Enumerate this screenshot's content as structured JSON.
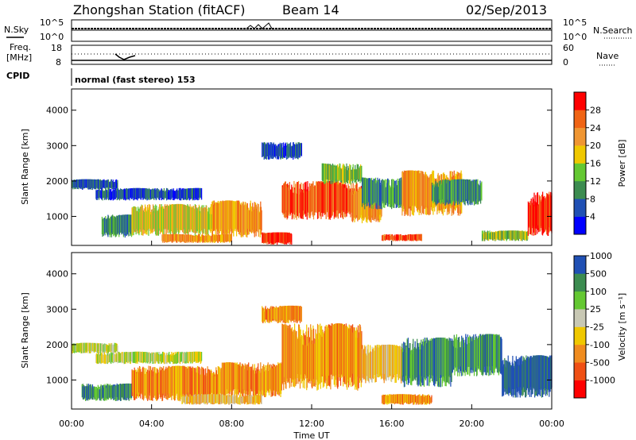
{
  "header": {
    "title": "Zhongshan Station (fitACF)",
    "beam": "Beam 14",
    "date": "02/Sep/2013"
  },
  "summary_panels": {
    "nsky_label": "N.Sky",
    "nsearch_label": "N.Search",
    "count_ticks": [
      "10^5",
      "10^0"
    ],
    "freq_label_1": "Freq.",
    "freq_label_2": "[MHz]",
    "freq_ticks": [
      "18",
      "8"
    ],
    "nave_ticks": [
      "60",
      "0"
    ],
    "nave_label": "Nave",
    "cpid_label": "CPID",
    "cpid_text": "normal (fast stereo) 153"
  },
  "colors": {
    "power_scale": [
      "#0000ff",
      "#2050b4",
      "#3c8c50",
      "#64c832",
      "#f0c800",
      "#f09632",
      "#f06414",
      "#ff0000"
    ],
    "velocity_scale": [
      "#ff0000",
      "#f05014",
      "#f08c1e",
      "#f0c800",
      "#c8c8b4",
      "#64c832",
      "#3c8c50",
      "#2050b4"
    ]
  },
  "chart_data": [
    {
      "type": "heatmap",
      "name": "power",
      "ylabel": "Slant Range [km]",
      "yticks": [
        "1000",
        "2000",
        "3000",
        "4000"
      ],
      "ylim": [
        180,
        4600
      ],
      "xlim": [
        0,
        24
      ],
      "colorbar_label": "Power [dB]",
      "colorbar_ticks": [
        "4",
        "8",
        "12",
        "16",
        "20",
        "24",
        "28"
      ],
      "colorbar_range": [
        0,
        32
      ],
      "blobs": [
        {
          "t0": 0.0,
          "t1": 2.3,
          "r0": 1750,
          "r1": 2050,
          "c": 1
        },
        {
          "t0": 1.2,
          "t1": 6.5,
          "r0": 1450,
          "r1": 1800,
          "c": 1
        },
        {
          "t0": 1.5,
          "t1": 3.0,
          "r0": 400,
          "r1": 1050,
          "c": 2
        },
        {
          "t0": 3.0,
          "t1": 7.0,
          "r0": 450,
          "r1": 1350,
          "c": 4
        },
        {
          "t0": 7.0,
          "t1": 9.5,
          "r0": 400,
          "r1": 1450,
          "c": 5
        },
        {
          "t0": 9.5,
          "t1": 11.0,
          "r0": 200,
          "r1": 550,
          "c": 7
        },
        {
          "t0": 10.5,
          "t1": 14.5,
          "r0": 900,
          "r1": 2000,
          "c": 6
        },
        {
          "t0": 12.5,
          "t1": 14.5,
          "r0": 1900,
          "r1": 2500,
          "c": 3
        },
        {
          "t0": 14.0,
          "t1": 15.5,
          "r0": 800,
          "r1": 1800,
          "c": 5
        },
        {
          "t0": 14.5,
          "t1": 17.0,
          "r0": 1200,
          "r1": 2100,
          "c": 2
        },
        {
          "t0": 16.5,
          "t1": 19.5,
          "r0": 1000,
          "r1": 2300,
          "c": 5
        },
        {
          "t0": 18.0,
          "t1": 20.5,
          "r0": 1300,
          "r1": 2050,
          "c": 2
        },
        {
          "t0": 20.5,
          "t1": 22.8,
          "r0": 300,
          "r1": 600,
          "c": 3
        },
        {
          "t0": 22.8,
          "t1": 24.0,
          "r0": 450,
          "r1": 1700,
          "c": 7
        },
        {
          "t0": 9.5,
          "t1": 11.5,
          "r0": 2600,
          "r1": 3100,
          "c": 1
        },
        {
          "t0": 15.5,
          "t1": 17.5,
          "r0": 300,
          "r1": 500,
          "c": 6
        },
        {
          "t0": 4.5,
          "t1": 8.0,
          "r0": 250,
          "r1": 500,
          "c": 5
        }
      ]
    },
    {
      "type": "heatmap",
      "name": "velocity",
      "ylabel": "Slant Range [km]",
      "yticks": [
        "1000",
        "2000",
        "3000",
        "4000"
      ],
      "ylim": [
        180,
        4600
      ],
      "xlim": [
        0,
        24
      ],
      "xticks": [
        "00:00",
        "04:00",
        "08:00",
        "12:00",
        "16:00",
        "20:00",
        "00:00"
      ],
      "xlabel": "Time UT",
      "colorbar_label": "Velocity [m s⁻¹]",
      "colorbar_ticks": [
        "-1000",
        "-500",
        "-100",
        "-25",
        "25",
        "100",
        "500",
        "1000"
      ],
      "blobs": [
        {
          "t0": 0.0,
          "t1": 2.3,
          "r0": 1750,
          "r1": 2050,
          "c": 4
        },
        {
          "t0": 1.2,
          "t1": 6.5,
          "r0": 1450,
          "r1": 1800,
          "c": 4
        },
        {
          "t0": 0.5,
          "t1": 3.0,
          "r0": 400,
          "r1": 900,
          "c": 6
        },
        {
          "t0": 3.0,
          "t1": 7.5,
          "r0": 400,
          "r1": 1400,
          "c": 2
        },
        {
          "t0": 7.5,
          "t1": 10.5,
          "r0": 500,
          "r1": 1500,
          "c": 2
        },
        {
          "t0": 10.5,
          "t1": 14.5,
          "r0": 700,
          "r1": 2600,
          "c": 2
        },
        {
          "t0": 14.5,
          "t1": 16.5,
          "r0": 900,
          "r1": 2000,
          "c": 3
        },
        {
          "t0": 16.5,
          "t1": 19.0,
          "r0": 800,
          "r1": 2200,
          "c": 6
        },
        {
          "t0": 19.0,
          "t1": 21.5,
          "r0": 1100,
          "r1": 2300,
          "c": 6
        },
        {
          "t0": 21.5,
          "t1": 24.0,
          "r0": 500,
          "r1": 1700,
          "c": 7
        },
        {
          "t0": 9.5,
          "t1": 11.5,
          "r0": 2600,
          "r1": 3100,
          "c": 2
        },
        {
          "t0": 15.5,
          "t1": 18.0,
          "r0": 300,
          "r1": 600,
          "c": 2
        },
        {
          "t0": 5.5,
          "t1": 9.5,
          "r0": 300,
          "r1": 600,
          "c": 3
        }
      ]
    }
  ]
}
